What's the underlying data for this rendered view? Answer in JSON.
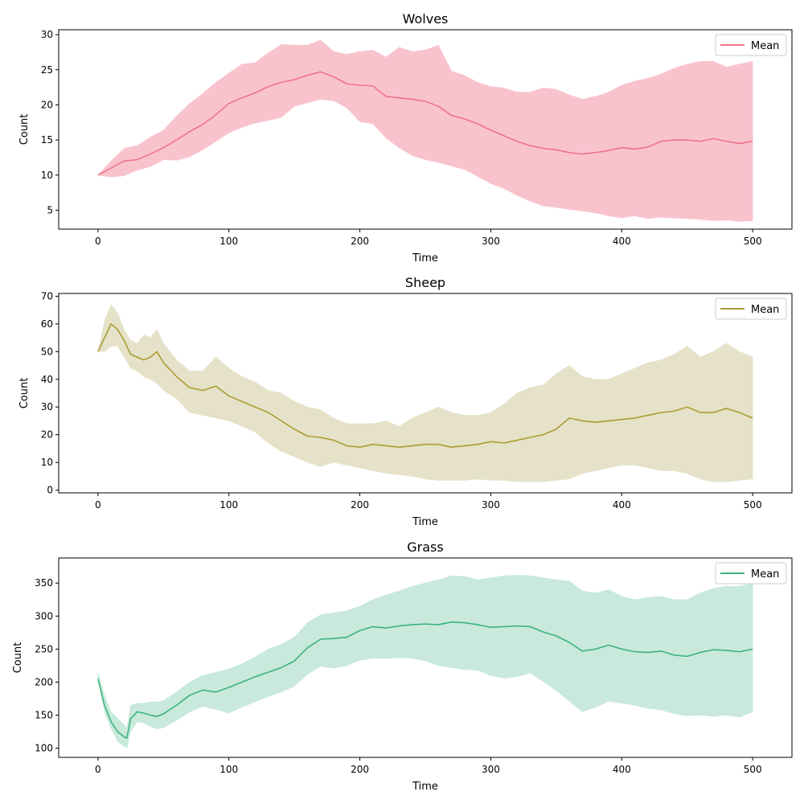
{
  "chart_data": [
    {
      "type": "area",
      "title": "Wolves",
      "xlabel": "Time",
      "ylabel": "Count",
      "xlim": [
        -30,
        530
      ],
      "ylim": [
        2.3,
        30.7
      ],
      "xticks": [
        0,
        100,
        200,
        300,
        400,
        500
      ],
      "yticks": [
        5,
        10,
        15,
        20,
        25,
        30
      ],
      "color": "#f07389",
      "band_color": "#f9b9c6",
      "legend": {
        "label": "Mean",
        "location": "top-right"
      },
      "grid": false,
      "series": [
        {
          "name": "Mean",
          "x": [
            0,
            10,
            20,
            30,
            40,
            50,
            60,
            70,
            80,
            90,
            100,
            110,
            120,
            130,
            140,
            150,
            160,
            170,
            180,
            190,
            200,
            210,
            220,
            230,
            240,
            250,
            260,
            270,
            280,
            290,
            300,
            310,
            320,
            330,
            340,
            350,
            360,
            370,
            380,
            390,
            400,
            410,
            420,
            430,
            440,
            450,
            460,
            470,
            480,
            490,
            500
          ],
          "values": [
            10,
            11,
            12,
            12.2,
            13,
            13.9,
            15,
            16.2,
            17.2,
            18.6,
            20.2,
            21,
            21.7,
            22.6,
            23.2,
            23.6,
            24.2,
            24.7,
            24,
            23,
            22.8,
            22.7,
            21.2,
            21,
            20.8,
            20.5,
            19.8,
            18.5,
            18,
            17.3,
            16.4,
            15.6,
            14.8,
            14.2,
            13.8,
            13.6,
            13.2,
            13,
            13.2,
            13.5,
            13.9,
            13.7,
            14,
            14.8,
            15,
            15,
            14.8,
            15.2,
            14.8,
            14.5,
            14.8
          ],
          "lower": [
            10,
            9.7,
            9.9,
            10.7,
            11.2,
            12.2,
            12.1,
            12.6,
            13.6,
            14.8,
            16,
            16.8,
            17.4,
            17.8,
            18.2,
            19.8,
            20.3,
            20.8,
            20.6,
            19.6,
            17.6,
            17.3,
            15.3,
            13.9,
            12.8,
            12.2,
            11.8,
            11.3,
            10.8,
            9.8,
            8.8,
            8.1,
            7.1,
            6.3,
            5.6,
            5.4,
            5.1,
            4.9,
            4.6,
            4.2,
            3.9,
            4.2,
            3.8,
            4,
            3.9,
            3.8,
            3.7,
            3.5,
            3.6,
            3.4,
            3.5
          ],
          "upper": [
            10,
            12,
            13.8,
            14.2,
            15.4,
            16.4,
            18.4,
            20.2,
            21.6,
            23.2,
            24.5,
            25.8,
            26,
            27.4,
            28.6,
            28.5,
            28.5,
            29.2,
            27.6,
            27.2,
            27.6,
            27.8,
            26.8,
            28.2,
            27.6,
            27.8,
            28.5,
            24.8,
            24.2,
            23.2,
            22.6,
            22.4,
            21.8,
            21.8,
            22.4,
            22.2,
            21.4,
            20.8,
            21.2,
            21.8,
            22.8,
            23.4,
            23.8,
            24.4,
            25.2,
            25.8,
            26.2,
            26.2,
            25.4,
            25.8,
            26.2
          ]
        }
      ]
    },
    {
      "type": "area",
      "title": "Sheep",
      "xlabel": "Time",
      "ylabel": "Count",
      "xlim": [
        -30,
        530
      ],
      "ylim": [
        -1,
        71
      ],
      "xticks": [
        0,
        100,
        200,
        300,
        400,
        500
      ],
      "yticks": [
        0,
        10,
        20,
        30,
        40,
        50,
        60,
        70
      ],
      "color": "#ad9c33",
      "band_color": "#e2ddc0",
      "legend": {
        "label": "Mean",
        "location": "top-right"
      },
      "grid": false,
      "series": [
        {
          "name": "Mean",
          "x": [
            0,
            5,
            10,
            15,
            20,
            25,
            30,
            35,
            40,
            45,
            50,
            60,
            70,
            80,
            90,
            100,
            110,
            120,
            130,
            140,
            150,
            160,
            170,
            180,
            190,
            200,
            210,
            220,
            230,
            240,
            250,
            260,
            270,
            280,
            290,
            300,
            310,
            320,
            330,
            340,
            350,
            360,
            370,
            380,
            390,
            400,
            410,
            420,
            430,
            440,
            450,
            460,
            470,
            480,
            490,
            500
          ],
          "values": [
            50,
            55,
            60,
            58,
            54,
            49,
            48,
            47,
            48,
            50,
            46,
            41,
            37,
            36,
            37.5,
            34,
            32,
            30,
            28,
            25,
            22,
            19.5,
            19,
            18,
            16,
            15.5,
            16.5,
            16,
            15.5,
            16,
            16.5,
            16.5,
            15.5,
            16,
            16.5,
            17.5,
            17,
            18,
            19,
            20,
            22,
            26,
            25,
            24.5,
            25,
            25.5,
            26,
            27,
            28,
            28.5,
            30,
            28,
            28,
            29.5,
            28,
            26
          ],
          "lower": [
            50,
            50,
            52,
            52,
            48,
            44,
            43,
            41,
            40,
            38.5,
            36,
            33,
            28,
            27,
            26,
            25,
            23,
            21,
            17,
            14,
            12,
            10,
            8.5,
            10,
            9,
            8,
            7,
            6,
            5.5,
            5,
            4,
            3.5,
            3.5,
            3.5,
            4,
            3.5,
            3.5,
            3,
            3,
            3,
            3.5,
            4,
            6,
            7,
            8,
            9,
            9,
            8,
            7,
            7,
            6,
            4,
            3,
            3,
            3.5,
            4
          ],
          "upper": [
            50,
            61,
            67,
            64,
            58,
            54,
            53,
            56,
            55,
            58,
            53,
            47,
            43,
            43,
            48,
            44,
            41,
            39,
            36,
            35,
            32,
            30,
            29,
            26,
            24,
            24,
            24,
            25,
            23,
            26,
            28,
            30,
            28,
            27,
            27,
            28,
            31,
            35,
            37,
            38,
            42,
            45,
            41,
            40,
            40,
            42,
            44,
            46,
            47,
            49,
            52,
            48,
            50,
            53,
            50,
            48
          ]
        }
      ]
    },
    {
      "type": "area",
      "title": "Grass",
      "xlabel": "Time",
      "ylabel": "Count",
      "xlim": [
        -30,
        530
      ],
      "ylim": [
        86,
        388
      ],
      "xticks": [
        0,
        100,
        200,
        300,
        400,
        500
      ],
      "yticks": [
        100,
        150,
        200,
        250,
        300,
        350
      ],
      "color": "#3cb37d",
      "band_color": "#bfe6d6",
      "legend": {
        "label": "Mean",
        "location": "top-right"
      },
      "grid": false,
      "series": [
        {
          "name": "Mean",
          "x": [
            0,
            5,
            10,
            15,
            20,
            22,
            25,
            30,
            35,
            40,
            45,
            50,
            60,
            70,
            80,
            90,
            100,
            110,
            120,
            130,
            140,
            150,
            160,
            170,
            180,
            190,
            200,
            210,
            220,
            230,
            240,
            250,
            260,
            270,
            280,
            290,
            300,
            310,
            320,
            330,
            340,
            350,
            360,
            370,
            380,
            390,
            400,
            410,
            420,
            430,
            440,
            450,
            460,
            470,
            480,
            490,
            500
          ],
          "values": [
            205,
            165,
            140,
            125,
            117,
            115,
            145,
            155,
            153,
            150,
            148,
            152,
            165,
            180,
            188,
            185,
            192,
            200,
            208,
            215,
            222,
            232,
            252,
            265,
            266,
            268,
            278,
            284,
            282,
            285,
            287,
            288,
            287,
            291,
            290,
            287,
            283,
            284,
            285,
            284,
            276,
            270,
            260,
            247,
            250,
            256,
            250,
            246,
            245,
            247,
            241,
            239,
            245,
            249,
            248,
            246,
            250
          ],
          "lower": [
            205,
            155,
            130,
            110,
            103,
            100,
            125,
            140,
            138,
            133,
            129,
            131,
            142,
            155,
            163,
            159,
            153,
            162,
            170,
            178,
            185,
            194,
            212,
            224,
            221,
            225,
            233,
            236,
            236,
            237,
            236,
            232,
            225,
            222,
            219,
            218,
            210,
            206,
            208,
            214,
            201,
            187,
            171,
            155,
            162,
            171,
            168,
            165,
            160,
            158,
            152,
            149,
            150,
            148,
            150,
            147,
            155
          ],
          "upper": [
            215,
            180,
            155,
            145,
            135,
            130,
            165,
            168,
            168,
            170,
            170,
            172,
            185,
            200,
            210,
            215,
            220,
            228,
            238,
            250,
            257,
            268,
            290,
            302,
            305,
            308,
            315,
            325,
            332,
            338,
            345,
            350,
            355,
            361,
            360,
            355,
            358,
            361,
            362,
            361,
            358,
            355,
            353,
            338,
            335,
            340,
            330,
            325,
            328,
            330,
            325,
            325,
            335,
            342,
            345,
            345,
            350
          ]
        }
      ]
    }
  ]
}
